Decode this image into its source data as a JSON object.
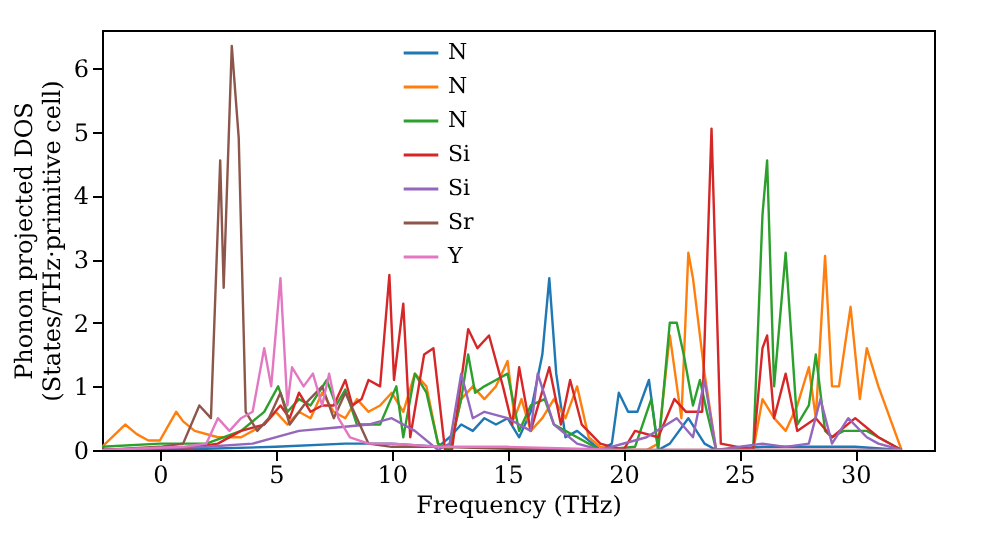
{
  "chart_data": {
    "type": "line",
    "xlabel": "Frequency (THz)",
    "ylabel": "Phonon projected DOS\n(States/THz·primitive cell)",
    "xlim": [
      -2.5,
      33.4
    ],
    "ylim": [
      0,
      6.6
    ],
    "xticks": [
      0,
      5,
      10,
      15,
      20,
      25,
      30
    ],
    "yticks": [
      0,
      1,
      2,
      3,
      4,
      5,
      6
    ],
    "grid": false,
    "legend": "top",
    "marker": "none",
    "line_style": "solid",
    "series": [
      {
        "name": "N",
        "color": "#1f77b4",
        "x": [
          -2.5,
          2,
          5,
          8,
          10,
          12,
          12.5,
          13,
          13.5,
          14,
          14.5,
          15,
          15.5,
          16,
          16.5,
          16.8,
          17.1,
          17.5,
          18,
          19,
          19.5,
          19.8,
          20.2,
          20.6,
          21.1,
          21.5,
          22,
          22.8,
          23.5,
          24,
          26,
          28,
          30,
          32
        ],
        "values": [
          0,
          0.02,
          0.05,
          0.1,
          0.1,
          0.05,
          0.2,
          0.4,
          0.3,
          0.5,
          0.4,
          0.5,
          0.2,
          0.6,
          1.5,
          2.7,
          1.2,
          0.2,
          0.3,
          0,
          0.1,
          0.9,
          0.6,
          0.6,
          1.1,
          0,
          0.1,
          0.5,
          0.1,
          0,
          0.05,
          0.05,
          0.05,
          0
        ]
      },
      {
        "name": "N",
        "color": "#ff7f0e",
        "x": [
          -2.5,
          -1.5,
          -1,
          -0.5,
          0,
          0.7,
          1,
          1.5,
          2.5,
          3.5,
          4.5,
          5,
          5.5,
          6,
          6.5,
          7,
          7.5,
          8,
          8.5,
          9,
          9.5,
          10,
          10.5,
          11,
          11.5,
          12,
          12.5,
          13,
          13.5,
          14,
          14.5,
          15,
          15.3,
          15.6,
          16,
          16.5,
          17,
          17.5,
          18,
          18.5,
          19,
          20,
          21,
          21.5,
          22,
          22.5,
          22.8,
          23,
          23.5,
          24,
          25.6,
          26,
          26.5,
          27,
          27.5,
          28,
          28.3,
          28.7,
          29,
          29.3,
          29.8,
          30.2,
          30.5,
          31,
          31.5,
          32
        ],
        "values": [
          0.05,
          0.4,
          0.25,
          0.15,
          0.15,
          0.6,
          0.45,
          0.3,
          0.2,
          0.2,
          0.4,
          0.6,
          0.4,
          0.6,
          0.5,
          0.9,
          0.6,
          0.5,
          0.8,
          0.6,
          0.7,
          0.9,
          0.6,
          1.2,
          1.0,
          0.1,
          0,
          0.8,
          1.0,
          0.8,
          1.0,
          1.4,
          0.5,
          0.8,
          0.3,
          0.5,
          0.8,
          0.5,
          1.0,
          0.2,
          0.05,
          0,
          0,
          0.1,
          1.8,
          0.5,
          3.1,
          2.7,
          1.2,
          0,
          0,
          0.8,
          0.5,
          0.3,
          0.7,
          1.3,
          0.5,
          3.05,
          1.0,
          1.0,
          2.25,
          0.8,
          1.6,
          1.0,
          0.5,
          0
        ]
      },
      {
        "name": "N",
        "color": "#2ca02c",
        "x": [
          -2.5,
          0,
          2,
          3.5,
          4.5,
          5.1,
          5.5,
          6,
          6.5,
          7.2,
          7.6,
          8,
          8.5,
          9,
          9.5,
          10.2,
          10.5,
          11,
          11.5,
          12,
          12.5,
          13,
          13.3,
          13.6,
          14,
          14.5,
          15,
          15.5,
          16,
          16.6,
          17,
          17.5,
          18,
          19,
          20.5,
          21.2,
          21.5,
          22,
          22.3,
          22.6,
          23,
          23.3,
          23.6,
          24,
          25.6,
          26,
          26.2,
          26.5,
          27,
          27.5,
          28,
          28.3,
          28.7,
          29,
          29.5,
          30,
          30.5,
          31,
          32
        ],
        "values": [
          0.05,
          0.1,
          0.1,
          0.3,
          0.6,
          1.0,
          0.6,
          0.8,
          0.7,
          1.1,
          0.7,
          0.95,
          0.4,
          0.4,
          0.4,
          1.0,
          0.2,
          1.2,
          0.9,
          0.1,
          0,
          0.8,
          1.5,
          0.9,
          1.0,
          1.1,
          1.2,
          0.3,
          0.7,
          0.8,
          0.4,
          0.3,
          0.2,
          0,
          0.05,
          0.8,
          0,
          2.0,
          2.0,
          1.5,
          0.7,
          1.1,
          0.6,
          0,
          0,
          3.7,
          4.55,
          1.0,
          3.1,
          0.4,
          0.7,
          1.5,
          0.3,
          0.2,
          0.3,
          0.3,
          0.3,
          0.2,
          0
        ]
      },
      {
        "name": "Si",
        "color": "#d62728",
        "x": [
          -2.5,
          1,
          2.5,
          3.5,
          4.5,
          5.2,
          5.6,
          6,
          6.5,
          7,
          7.5,
          8,
          8.3,
          8.7,
          9,
          9.5,
          9.9,
          10.1,
          10.5,
          10.8,
          11.4,
          11.8,
          12.3,
          12.6,
          13.3,
          13.7,
          14.2,
          14.8,
          15.2,
          15.5,
          16,
          16.8,
          17.3,
          17.7,
          18.2,
          19,
          20,
          20.5,
          21.5,
          22.2,
          22.7,
          23.4,
          23.8,
          24.2,
          25.6,
          26,
          26.2,
          26.5,
          27,
          27.5,
          28.3,
          29,
          30,
          31,
          32
        ],
        "values": [
          0,
          0.02,
          0.1,
          0.3,
          0.4,
          0.7,
          0.5,
          0.9,
          0.6,
          0.7,
          0.7,
          1.1,
          0.7,
          0.8,
          1.1,
          1.0,
          2.75,
          1.1,
          2.3,
          0.2,
          1.5,
          1.6,
          0,
          0,
          1.9,
          1.6,
          1.8,
          1.0,
          0.4,
          1.3,
          0.3,
          1.3,
          0.4,
          1.1,
          0.4,
          0.1,
          0,
          0.3,
          0.2,
          0.8,
          0.6,
          0.6,
          5.05,
          0.1,
          0,
          1.6,
          1.8,
          0.5,
          1.2,
          0.3,
          0.5,
          0.2,
          0.5,
          0.2,
          0
        ]
      },
      {
        "name": "Si",
        "color": "#9467bd",
        "x": [
          -2.5,
          2,
          4,
          6,
          7.5,
          9,
          10,
          11,
          12,
          12.5,
          13,
          13.5,
          14,
          15,
          16,
          16.3,
          17,
          18,
          19,
          21,
          22.3,
          23,
          23.5,
          24,
          26,
          27,
          28,
          28.5,
          29,
          29.7,
          30.5,
          31,
          32
        ],
        "values": [
          0,
          0.05,
          0.1,
          0.3,
          0.35,
          0.4,
          0.5,
          0.3,
          0,
          0.1,
          1.2,
          0.5,
          0.6,
          0.5,
          0.3,
          1.2,
          0.4,
          0.1,
          0,
          0.2,
          0.5,
          0.2,
          1.1,
          0,
          0.1,
          0.05,
          0.1,
          0.8,
          0.1,
          0.5,
          0.2,
          0.1,
          0
        ]
      },
      {
        "name": "Sr",
        "color": "#8c564b",
        "x": [
          -2.5,
          0,
          1,
          1.7,
          2.2,
          2.6,
          2.75,
          3.1,
          3.4,
          3.7,
          4.2,
          4.7,
          5.2,
          5.6,
          6.2,
          7,
          7.5,
          8,
          9,
          10,
          12,
          15,
          20,
          25,
          32
        ],
        "values": [
          0,
          0.05,
          0.1,
          0.7,
          0.5,
          4.55,
          2.55,
          6.35,
          4.9,
          0.6,
          0.3,
          0.5,
          0.9,
          0.4,
          0.7,
          1.0,
          0.5,
          0.9,
          0.1,
          0.05,
          0.05,
          0.02,
          0,
          0,
          0
        ]
      },
      {
        "name": "Y",
        "color": "#e377c2",
        "x": [
          -2.5,
          1,
          2,
          2.5,
          3,
          3.5,
          4,
          4.5,
          4.8,
          5.2,
          5.5,
          5.7,
          6.2,
          6.6,
          7,
          7.3,
          7.7,
          8.2,
          9,
          10,
          12,
          15,
          18,
          20,
          32
        ],
        "values": [
          0,
          0.05,
          0.1,
          0.5,
          0.3,
          0.5,
          0.6,
          1.6,
          1.0,
          2.7,
          0.7,
          1.3,
          1.0,
          1.2,
          0.7,
          1.2,
          0.5,
          0.2,
          0.1,
          0.1,
          0.05,
          0.05,
          0.02,
          0,
          0
        ]
      }
    ]
  }
}
